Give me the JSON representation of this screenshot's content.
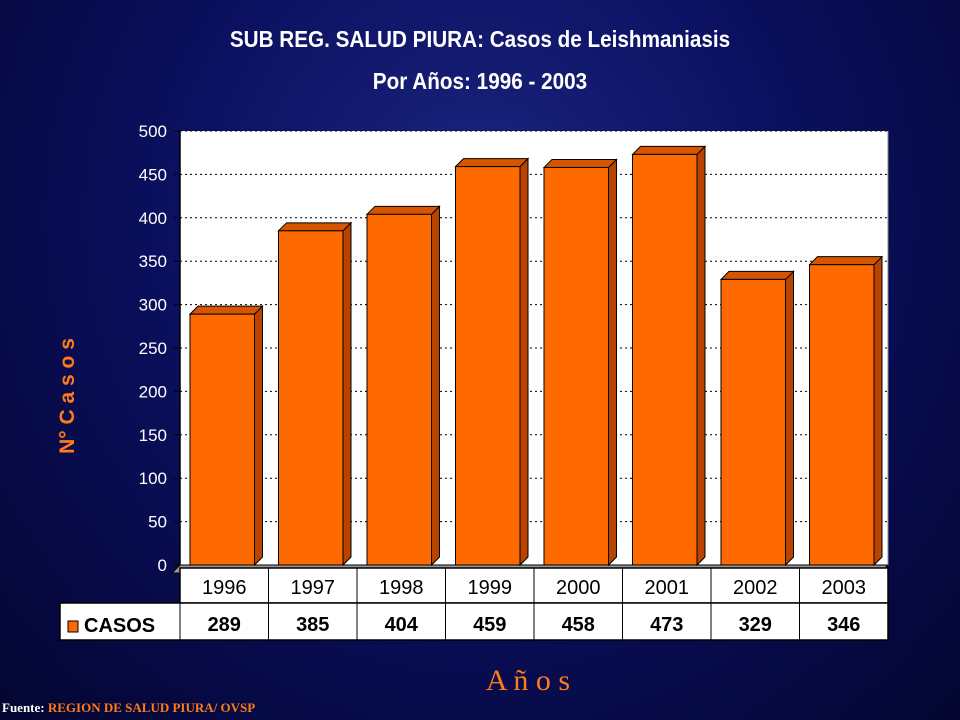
{
  "title": "SUB REG. SALUD PIURA: Casos de Leishmaniasis",
  "subtitle": "Por Años: 1996 - 2003",
  "footer": {
    "label": "Fuente:",
    "source": "REGION DE SALUD PIURA/ OVSP"
  },
  "colors": {
    "bar_front": "#ff6a00",
    "bar_side": "#b84400",
    "bar_top": "#d65500",
    "axis_label": "#ff7a1a",
    "text": "#000000",
    "plot_bg": "#ffffff"
  },
  "chart_data": {
    "type": "bar",
    "title": "SUB REG. SALUD PIURA: Casos de Leishmaniasis",
    "subtitle": "Por Años: 1996 - 2003",
    "xlabel": "A ñ o s",
    "ylabel": "N° C a s o s",
    "categories": [
      "1996",
      "1997",
      "1998",
      "1999",
      "2000",
      "2001",
      "2002",
      "2003"
    ],
    "series": [
      {
        "name": "CASOS",
        "values": [
          289,
          385,
          404,
          459,
          458,
          473,
          329,
          346
        ]
      }
    ],
    "ylim": [
      0,
      500
    ],
    "yticks": [
      "0",
      "50",
      "100",
      "150",
      "200",
      "250",
      "300",
      "350",
      "400",
      "450",
      "500"
    ],
    "grid": true,
    "legend": "data-table"
  }
}
